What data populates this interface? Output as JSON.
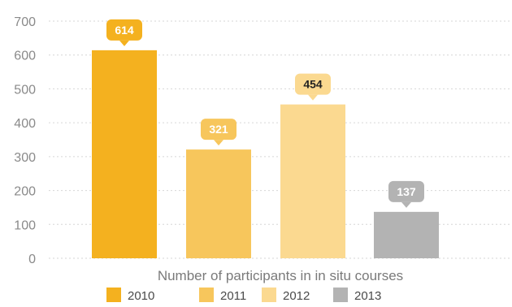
{
  "chart_data": {
    "type": "bar",
    "categories": [
      "2010",
      "2011",
      "2012",
      "2013"
    ],
    "values": [
      614,
      321,
      454,
      137
    ],
    "colors": [
      "#f4b11f",
      "#f7c65c",
      "#fbd990",
      "#b3b3b3"
    ],
    "label_text_colors": [
      "#ffffff",
      "#ffffff",
      "#222222",
      "#ffffff"
    ],
    "xlabel": "Number of participants in in situ courses",
    "ylabel": "",
    "ylim": [
      0,
      700
    ],
    "yticks": [
      0,
      100,
      200,
      300,
      400,
      500,
      600,
      700
    ],
    "grid": true,
    "legend": {
      "position": "bottom",
      "entries": [
        "2010",
        "2011",
        "2012",
        "2013"
      ]
    }
  }
}
